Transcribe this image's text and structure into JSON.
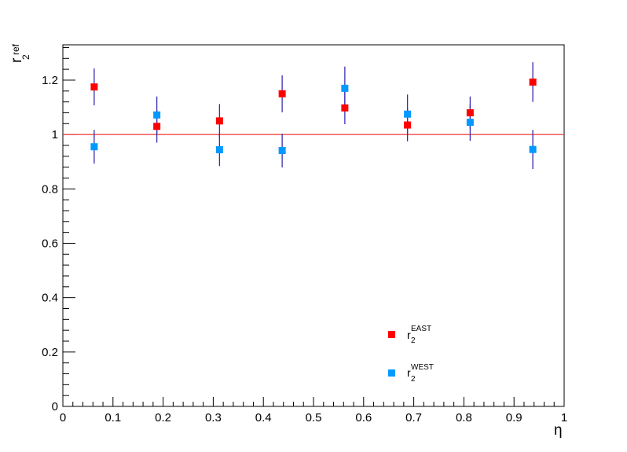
{
  "chart_data": {
    "type": "scatter",
    "title": "",
    "xlabel": "η",
    "ylabel": {
      "main": "r",
      "sub": "2",
      "sup": "ref"
    },
    "xlim": [
      0,
      1
    ],
    "ylim": [
      0,
      1.33
    ],
    "x_ticks": [
      "0",
      "0.1",
      "0.2",
      "0.3",
      "0.4",
      "0.5",
      "0.6",
      "0.7",
      "0.8",
      "0.9",
      "1"
    ],
    "y_ticks": [
      "0",
      "0.2",
      "0.4",
      "0.6",
      "0.8",
      "1",
      "1.2"
    ],
    "reference_line": {
      "y": 1,
      "color": "#ee3333"
    },
    "error_bar_color": "#3a2fb0",
    "legend_position": "bottom-right",
    "series": [
      {
        "name": {
          "main": "r",
          "sub": "2",
          "sup": "EAST"
        },
        "color": "#ff0000",
        "x": [
          0.0625,
          0.1875,
          0.3125,
          0.4375,
          0.5625,
          0.6875,
          0.8125,
          0.9375
        ],
        "y": [
          1.175,
          1.03,
          1.05,
          1.15,
          1.098,
          1.035,
          1.08,
          1.193
        ],
        "yerr": [
          0.068,
          0.06,
          0.062,
          0.068,
          0.06,
          0.06,
          0.06,
          0.073
        ]
      },
      {
        "name": {
          "main": "r",
          "sub": "2",
          "sup": "WEST"
        },
        "color": "#0099ff",
        "x": [
          0.0625,
          0.1875,
          0.3125,
          0.4375,
          0.5625,
          0.6875,
          0.8125,
          0.9375
        ],
        "y": [
          0.955,
          1.072,
          0.944,
          0.941,
          1.17,
          1.075,
          1.045,
          0.945
        ],
        "yerr": [
          0.062,
          0.068,
          0.06,
          0.062,
          0.08,
          0.072,
          0.068,
          0.072
        ]
      }
    ]
  }
}
